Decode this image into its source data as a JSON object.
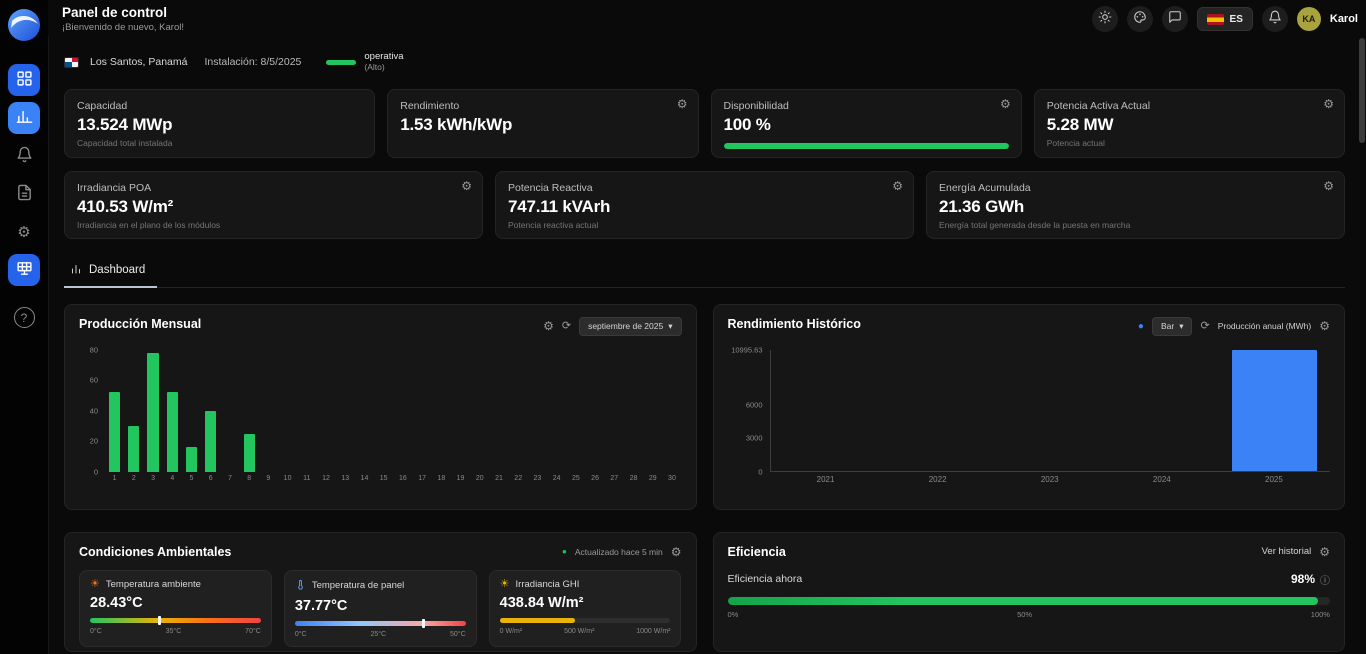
{
  "icons": {
    "settings": "⚙",
    "refresh": "⟳",
    "chevron": "▾",
    "info": "ⓘ",
    "dot": "●",
    "sun": "☀",
    "help": "?"
  },
  "header": {
    "title": "Panel de control",
    "subtitle": "¡Bienvenido de nuevo, Karol!",
    "language": "ES",
    "user_initials": "KA",
    "user_name": "Karol"
  },
  "site": {
    "location": "Los Santos, Panamá",
    "installation": "Instalación: 8/5/2025",
    "status": "operativa",
    "status_level": "(Alto)"
  },
  "tabs": {
    "dashboard": "Dashboard"
  },
  "kpis": [
    {
      "label": "Capacidad",
      "value": "13.524 MWp",
      "sub": "Capacidad total instalada"
    },
    {
      "label": "Rendimiento",
      "value": "1.53 kWh/kWp",
      "sub": ""
    },
    {
      "label": "Disponibilidad",
      "value": "100 %",
      "sub": "",
      "progress_pct": 100
    },
    {
      "label": "Potencia Activa Actual",
      "value": "5.28 MW",
      "sub": "Potencia actual"
    },
    {
      "label": "Irradiancia POA",
      "value": "410.53 W/m²",
      "sub": "Irradiancia en el plano de los módulos"
    },
    {
      "label": "Potencia Reactiva",
      "value": "747.11 kVArh",
      "sub": "Potencia reactiva actual"
    },
    {
      "label": "Energía Acumulada",
      "value": "21.36 GWh",
      "sub": "Energía total generada desde la puesta en marcha"
    }
  ],
  "chart_data": [
    {
      "type": "bar",
      "title": "Producción Mensual",
      "period_selector": "septiembre de 2025",
      "x": [
        1,
        2,
        3,
        4,
        5,
        6,
        7,
        8,
        9,
        10,
        11,
        12,
        13,
        14,
        15,
        16,
        17,
        18,
        19,
        20,
        21,
        22,
        23,
        24,
        25,
        26,
        27,
        28,
        29,
        30
      ],
      "values": [
        52,
        30,
        78,
        52,
        16,
        40,
        0,
        25,
        0,
        0,
        0,
        0,
        0,
        0,
        0,
        0,
        0,
        0,
        0,
        0,
        0,
        0,
        0,
        0,
        0,
        0,
        0,
        0,
        0,
        0
      ],
      "ylim": [
        0,
        80
      ],
      "yticks": [
        0,
        20,
        40,
        60,
        80
      ],
      "xlabel": "",
      "ylabel": "",
      "grid": false,
      "bar_color": "#22c55e"
    },
    {
      "type": "bar",
      "title": "Rendimiento Histórico",
      "legend": "Producción anual (MWh)",
      "chart_type_selector": "Bar",
      "categories": [
        "2021",
        "2022",
        "2023",
        "2024",
        "2025"
      ],
      "values": [
        0,
        0,
        0,
        0,
        10995.63
      ],
      "ylim": [
        0,
        10995.63
      ],
      "yticks": [
        0,
        3000,
        6000,
        10995.63
      ],
      "xlabel": "",
      "ylabel": "",
      "grid": false,
      "bar_color": "#3b82f6"
    }
  ],
  "environment": {
    "title": "Condiciones Ambientales",
    "updated": "Actualizado hace 5 min",
    "metrics": [
      {
        "label": "Temperatura ambiente",
        "value": "28.43°C",
        "scale_min": "0°C",
        "scale_mid": "35°C",
        "scale_max": "70°C",
        "pct": 40.6
      },
      {
        "label": "Temperatura de panel",
        "value": "37.77°C",
        "scale_min": "0°C",
        "scale_mid": "25°C",
        "scale_max": "50°C",
        "pct": 75.5
      },
      {
        "label": "Irradiancia GHI",
        "value": "438.84 W/m²",
        "scale_min": "0 W/m²",
        "scale_mid": "500 W/m²",
        "scale_max": "1000 W/m²",
        "pct": 43.9
      }
    ]
  },
  "efficiency": {
    "title": "Eficiencia",
    "link": "Ver historial",
    "now_label": "Eficiencia ahora",
    "value": "98%",
    "pct": 98,
    "scale_min": "0%",
    "scale_mid": "50%",
    "scale_max": "100%"
  }
}
